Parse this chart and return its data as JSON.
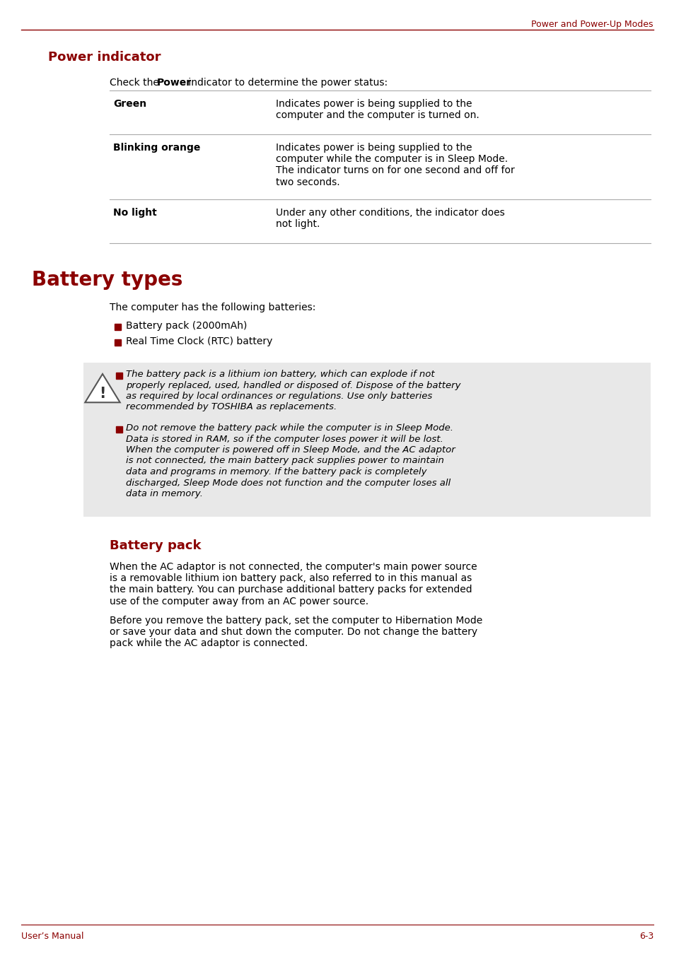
{
  "header_text": "Power and Power-Up Modes",
  "header_color": "#8B0000",
  "top_line_color": "#8B0000",
  "footer_line_color": "#8B0000",
  "footer_left": "User’s Manual",
  "footer_right": "6-3",
  "footer_color": "#8B0000",
  "section1_title": "Power indicator",
  "section1_title_color": "#8B0000",
  "table_line_color": "#aaaaaa",
  "section2_title": "Battery types",
  "section2_title_color": "#8B0000",
  "section2_intro": "The computer has the following batteries:",
  "bullet_items": [
    "Battery pack (2000mAh)",
    "Real Time Clock (RTC) battery"
  ],
  "bullet_color": "#8B0000",
  "warning_bg": "#e8e8e8",
  "warning_items": [
    "The battery pack is a lithium ion battery, which can explode if not\nproperly replaced, used, handled or disposed of. Dispose of the battery\nas required by local ordinances or regulations. Use only batteries\nrecommended by TOSHIBA as replacements.",
    "Do not remove the battery pack while the computer is in Sleep Mode.\nData is stored in RAM, so if the computer loses power it will be lost.\nWhen the computer is powered off in Sleep Mode, and the AC adaptor\nis not connected, the main battery pack supplies power to maintain\ndata and programs in memory. If the battery pack is completely\ndischarged, Sleep Mode does not function and the computer loses all\ndata in memory."
  ],
  "section3_title": "Battery pack",
  "section3_title_color": "#8B0000",
  "section3_para1": "When the AC adaptor is not connected, the computer's main power source\nis a removable lithium ion battery pack, also referred to in this manual as\nthe main battery. You can purchase additional battery packs for extended\nuse of the computer away from an AC power source.",
  "section3_para2": "Before you remove the battery pack, set the computer to Hibernation Mode\nor save your data and shut down the computer. Do not change the battery\npack while the AC adaptor is connected.",
  "text_color": "#000000",
  "page_bg": "#ffffff"
}
